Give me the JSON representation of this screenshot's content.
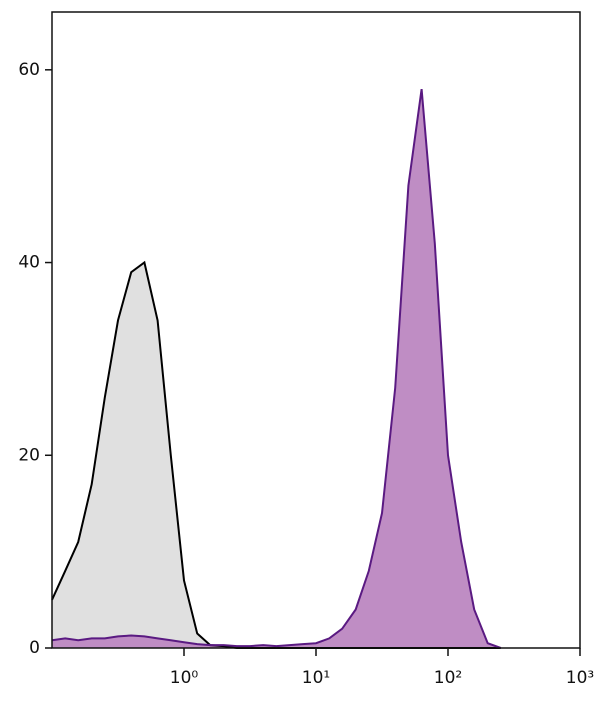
{
  "chart_data": {
    "type": "area",
    "xscale": "log",
    "x": [
      0.1,
      0.126,
      0.158,
      0.2,
      0.251,
      0.316,
      0.398,
      0.501,
      0.631,
      0.794,
      1,
      1.26,
      1.58,
      2,
      2.51,
      3.16,
      3.98,
      5.01,
      6.31,
      7.94,
      10,
      12.6,
      15.8,
      20,
      25.1,
      31.6,
      39.8,
      50.1,
      63.1,
      79.4,
      100,
      126,
      158,
      200,
      251
    ],
    "series": [
      {
        "color": "#e0e0e0",
        "line_color": "#000000",
        "values": [
          5,
          8,
          11,
          17,
          26,
          34,
          39,
          40,
          34,
          20,
          7,
          1.5,
          0.3,
          0.2,
          0,
          0,
          0,
          0,
          0,
          0,
          0,
          0,
          0,
          0,
          0,
          0,
          0,
          0,
          0,
          0,
          0,
          0,
          0,
          0,
          0
        ]
      },
      {
        "color": "#bf8dc4",
        "line_color": "#5a1a82",
        "values": [
          0.8,
          1,
          0.8,
          1,
          1,
          1.2,
          1.3,
          1.2,
          1,
          0.8,
          0.6,
          0.4,
          0.3,
          0.3,
          0.2,
          0.2,
          0.3,
          0.2,
          0.3,
          0.4,
          0.5,
          1,
          2,
          4,
          8,
          14,
          27,
          48,
          58,
          42,
          20,
          11,
          4,
          0.5,
          0
        ]
      }
    ],
    "xlim": [
      0.1,
      1000
    ],
    "xticks": [
      {
        "value": 1,
        "label": "10⁰"
      },
      {
        "value": 10,
        "label": "10¹"
      },
      {
        "value": 100,
        "label": "10²"
      },
      {
        "value": 1000,
        "label": "10³"
      }
    ],
    "ylim": [
      0,
      66
    ],
    "yticks": [
      0,
      20,
      40,
      60
    ]
  }
}
